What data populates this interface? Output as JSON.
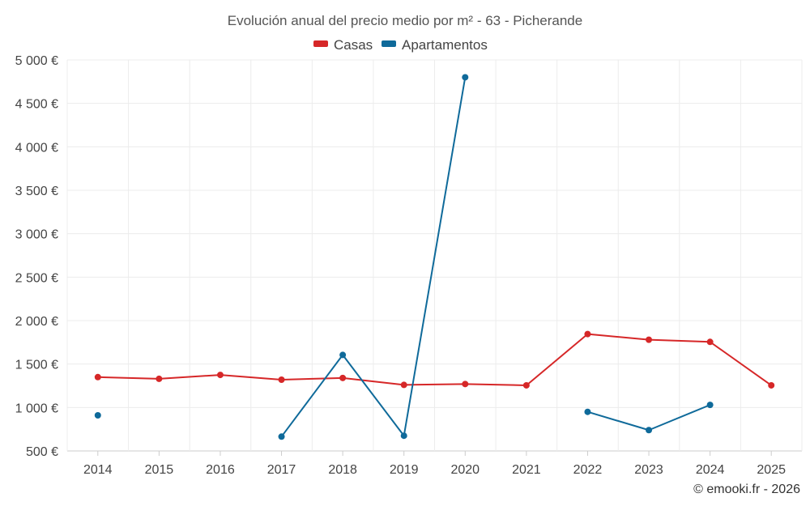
{
  "chart_data": {
    "type": "line",
    "title": "Evolución anual del precio medio por m² - 63 - Picherande",
    "xlabel": "",
    "ylabel": "",
    "categories": [
      "2014",
      "2015",
      "2016",
      "2017",
      "2018",
      "2019",
      "2020",
      "2021",
      "2022",
      "2023",
      "2024",
      "2025"
    ],
    "ylim": [
      500,
      5000
    ],
    "yticks": [
      500,
      1000,
      1500,
      2000,
      2500,
      3000,
      3500,
      4000,
      4500,
      5000
    ],
    "ytick_labels": [
      "500 €",
      "1 000 €",
      "1 500 €",
      "2 000 €",
      "2 500 €",
      "3 000 €",
      "3 500 €",
      "4 000 €",
      "4 500 €",
      "5 000 €"
    ],
    "grid": true,
    "legend_position": "top-center",
    "series": [
      {
        "name": "Casas",
        "color": "#d62728",
        "values": [
          1350,
          1330,
          1375,
          1320,
          1340,
          1260,
          1270,
          1255,
          1845,
          1780,
          1755,
          1255
        ]
      },
      {
        "name": "Apartamentos",
        "color": "#0f6a9a",
        "values": [
          910,
          null,
          null,
          665,
          1605,
          675,
          4800,
          null,
          950,
          740,
          1030,
          null
        ]
      }
    ]
  },
  "credit": "© emooki.fr - 2026"
}
